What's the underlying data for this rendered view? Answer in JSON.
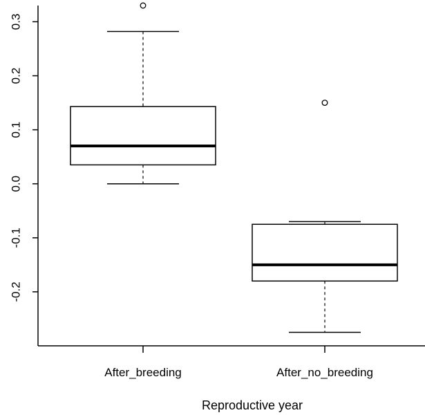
{
  "chart_data": {
    "type": "boxplot",
    "title": "",
    "xlabel": "Reproductive year",
    "ylabel": "",
    "ylim": [
      -0.3,
      0.33
    ],
    "y_ticks": [
      0.3,
      0.2,
      0.1,
      0.0,
      -0.1,
      -0.2
    ],
    "y_tick_labels": [
      "0.3",
      "0.2",
      "0.1",
      "0.0",
      "-0.1",
      "-0.2"
    ],
    "categories": [
      "After_breeding",
      "After_no_breeding"
    ],
    "series": [
      {
        "name": "After_breeding",
        "min": 0.0,
        "q1": 0.035,
        "median": 0.07,
        "q3": 0.143,
        "max": 0.282,
        "outliers": [
          0.33
        ]
      },
      {
        "name": "After_no_breeding",
        "min": -0.275,
        "q1": -0.18,
        "median": -0.15,
        "q3": -0.075,
        "max": -0.07,
        "outliers": [
          0.15
        ]
      }
    ],
    "grid": false,
    "legend": false
  }
}
